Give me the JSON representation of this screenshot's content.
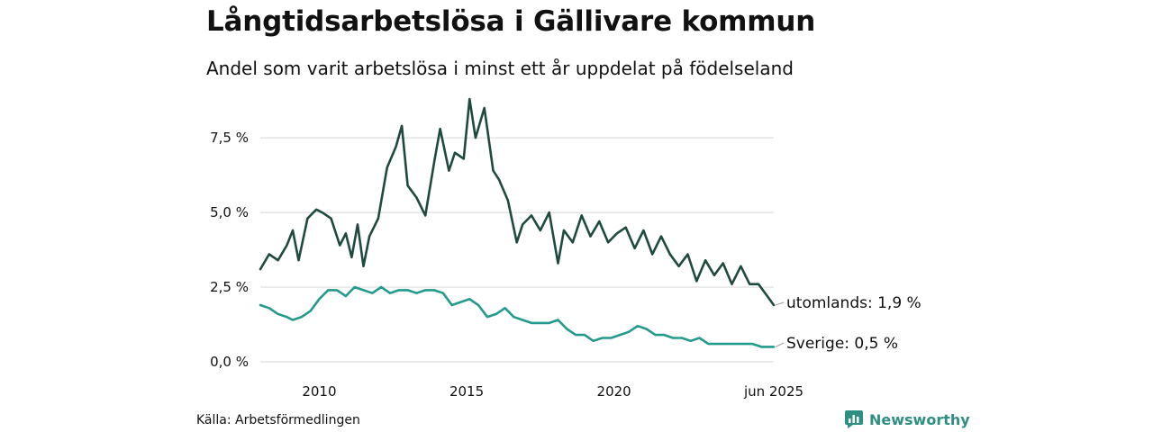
{
  "header": {
    "title": "Långtidsarbetslösa i Gällivare kommun",
    "subtitle": "Andel som varit arbetslösa i minst ett år uppdelat på födelseland"
  },
  "footer": {
    "source": "Källa: Arbetsförmedlingen",
    "brand": "Newsworthy"
  },
  "colors": {
    "utomlands": "#1f4a40",
    "sverige": "#239b8c",
    "grid": "#dddddd",
    "brand": "#2f8f82"
  },
  "icons": {
    "brand": "newsworthy-chart-icon"
  },
  "chart_data": {
    "type": "line",
    "title": "Långtidsarbetslösa i Gällivare kommun",
    "subtitle": "Andel som varit arbetslösa i minst ett år uppdelat på födelseland",
    "ylim": [
      0,
      8.8
    ],
    "yticks": [
      {
        "value": 0,
        "label": "0,0 %"
      },
      {
        "value": 2.5,
        "label": "2,5 %"
      },
      {
        "value": 5,
        "label": "5,0 %"
      },
      {
        "value": 7.5,
        "label": "7,5 %"
      }
    ],
    "xlim": [
      2008.0,
      2025.42
    ],
    "xticks": [
      {
        "value": 2010,
        "label": "2010"
      },
      {
        "value": 2015,
        "label": "2015"
      },
      {
        "value": 2020,
        "label": "2020"
      },
      {
        "value": 2025.42,
        "label": "jun 2025"
      }
    ],
    "grid": true,
    "legend": "end-labels",
    "series": [
      {
        "name": "utomlands",
        "end_label": "utomlands: 1,9 %",
        "x": [
          2008.0,
          2008.3,
          2008.6,
          2008.9,
          2009.1,
          2009.3,
          2009.6,
          2009.9,
          2010.1,
          2010.4,
          2010.7,
          2010.9,
          2011.1,
          2011.3,
          2011.5,
          2011.7,
          2012.0,
          2012.3,
          2012.6,
          2012.8,
          2013.0,
          2013.3,
          2013.6,
          2013.9,
          2014.1,
          2014.4,
          2014.6,
          2014.9,
          2015.1,
          2015.3,
          2015.6,
          2015.9,
          2016.1,
          2016.4,
          2016.7,
          2016.9,
          2017.2,
          2017.5,
          2017.8,
          2018.1,
          2018.3,
          2018.6,
          2018.9,
          2019.2,
          2019.5,
          2019.8,
          2020.1,
          2020.4,
          2020.7,
          2021.0,
          2021.3,
          2021.6,
          2021.9,
          2022.2,
          2022.5,
          2022.8,
          2023.1,
          2023.4,
          2023.7,
          2024.0,
          2024.3,
          2024.6,
          2024.9,
          2025.2,
          2025.42
        ],
        "values": [
          3.1,
          3.6,
          3.4,
          3.9,
          4.4,
          3.4,
          4.8,
          5.1,
          5.0,
          4.8,
          3.9,
          4.3,
          3.5,
          4.6,
          3.2,
          4.2,
          4.8,
          6.5,
          7.2,
          7.9,
          5.9,
          5.5,
          4.9,
          6.7,
          7.8,
          6.4,
          7.0,
          6.8,
          8.8,
          7.5,
          8.5,
          6.4,
          6.1,
          5.4,
          4.0,
          4.6,
          4.9,
          4.4,
          5.0,
          3.3,
          4.4,
          4.0,
          4.9,
          4.2,
          4.7,
          4.0,
          4.3,
          4.5,
          3.8,
          4.4,
          3.6,
          4.2,
          3.6,
          3.2,
          3.6,
          2.7,
          3.4,
          2.9,
          3.3,
          2.6,
          3.2,
          2.6,
          2.6,
          2.2,
          1.9
        ]
      },
      {
        "name": "Sverige",
        "end_label": "Sverige: 0,5 %",
        "x": [
          2008.0,
          2008.3,
          2008.6,
          2008.9,
          2009.1,
          2009.4,
          2009.7,
          2010.0,
          2010.3,
          2010.6,
          2010.9,
          2011.2,
          2011.5,
          2011.8,
          2012.1,
          2012.4,
          2012.7,
          2013.0,
          2013.3,
          2013.6,
          2013.9,
          2014.2,
          2014.5,
          2014.8,
          2015.1,
          2015.4,
          2015.7,
          2016.0,
          2016.3,
          2016.6,
          2016.9,
          2017.2,
          2017.5,
          2017.8,
          2018.1,
          2018.4,
          2018.7,
          2019.0,
          2019.3,
          2019.6,
          2019.9,
          2020.2,
          2020.5,
          2020.8,
          2021.1,
          2021.4,
          2021.7,
          2022.0,
          2022.3,
          2022.6,
          2022.9,
          2023.2,
          2023.5,
          2023.8,
          2024.1,
          2024.4,
          2024.7,
          2025.0,
          2025.2,
          2025.42
        ],
        "values": [
          1.9,
          1.8,
          1.6,
          1.5,
          1.4,
          1.5,
          1.7,
          2.1,
          2.4,
          2.4,
          2.2,
          2.5,
          2.4,
          2.3,
          2.5,
          2.3,
          2.4,
          2.4,
          2.3,
          2.4,
          2.4,
          2.3,
          1.9,
          2.0,
          2.1,
          1.9,
          1.5,
          1.6,
          1.8,
          1.5,
          1.4,
          1.3,
          1.3,
          1.3,
          1.4,
          1.1,
          0.9,
          0.9,
          0.7,
          0.8,
          0.8,
          0.9,
          1.0,
          1.2,
          1.1,
          0.9,
          0.9,
          0.8,
          0.8,
          0.7,
          0.8,
          0.6,
          0.6,
          0.6,
          0.6,
          0.6,
          0.6,
          0.5,
          0.5,
          0.5
        ]
      }
    ]
  }
}
